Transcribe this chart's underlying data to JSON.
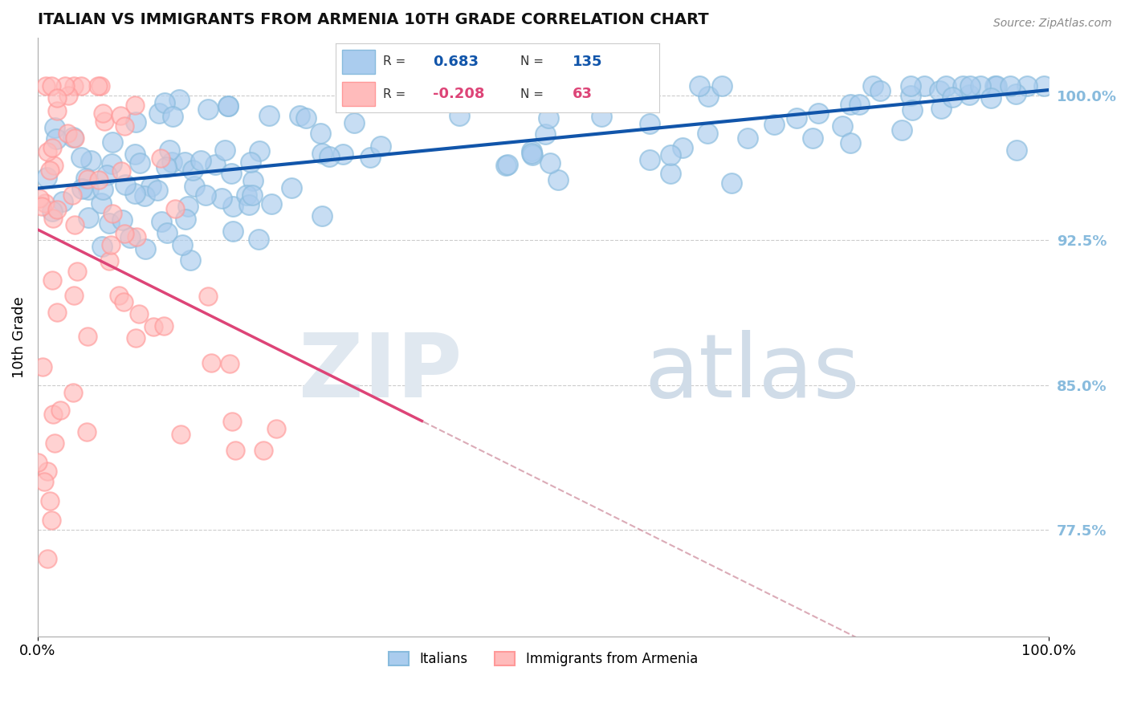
{
  "title": "ITALIAN VS IMMIGRANTS FROM ARMENIA 10TH GRADE CORRELATION CHART",
  "source_text": "Source: ZipAtlas.com",
  "ylabel": "10th Grade",
  "xlim": [
    0.0,
    1.0
  ],
  "ylim": [
    0.72,
    1.03
  ],
  "ytick_right_labels": [
    "77.5%",
    "85.0%",
    "92.5%",
    "100.0%"
  ],
  "ytick_right_values": [
    0.775,
    0.85,
    0.925,
    1.0
  ],
  "legend_r1": "0.683",
  "legend_n1": "135",
  "legend_r2": "-0.208",
  "legend_n2": "63",
  "blue_color": "#88BBDD",
  "blue_fill": "#AACCEE",
  "blue_line_color": "#1155AA",
  "pink_color": "#FF9999",
  "pink_fill": "#FFBBBB",
  "pink_line_color": "#DD4477",
  "background_color": "#ffffff",
  "grid_color": "#cccccc",
  "seed": 42
}
